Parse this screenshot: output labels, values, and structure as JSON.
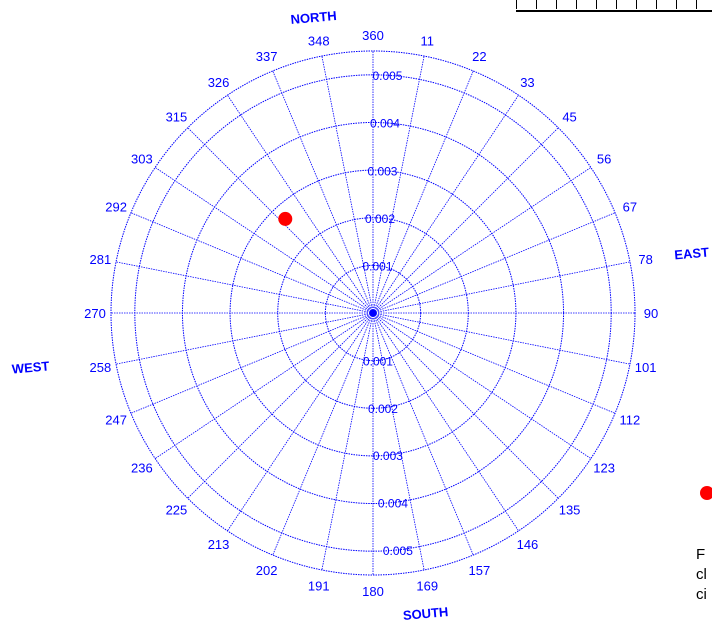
{
  "chart_data": {
    "type": "scatter",
    "coordinate_system": "polar",
    "title": "",
    "compass": {
      "north": "NORTH",
      "east": "EAST",
      "south": "SOUTH",
      "west": "WEST"
    },
    "angle_labels": [
      "360",
      "11",
      "22",
      "33",
      "45",
      "56",
      "67",
      "78",
      "90",
      "101",
      "112",
      "123",
      "135",
      "146",
      "157",
      "169",
      "180",
      "191",
      "202",
      "213",
      "225",
      "236",
      "247",
      "258",
      "270",
      "281",
      "292",
      "303",
      "315",
      "326",
      "337",
      "348"
    ],
    "radial_ticks": [
      "0.001",
      "0.002",
      "0.003",
      "0.004",
      "0.005"
    ],
    "radial_range": [
      0,
      0.0055
    ],
    "grid": true,
    "points": [
      {
        "angle": 317,
        "r": 0.0027,
        "color": "#ff0000"
      }
    ],
    "colors": {
      "grid": "#0000ff",
      "text": "#0000ff",
      "point": "#ff0000"
    }
  },
  "legend": {
    "marker_color": "#ff0000"
  },
  "caption": "F\ncl\nci"
}
